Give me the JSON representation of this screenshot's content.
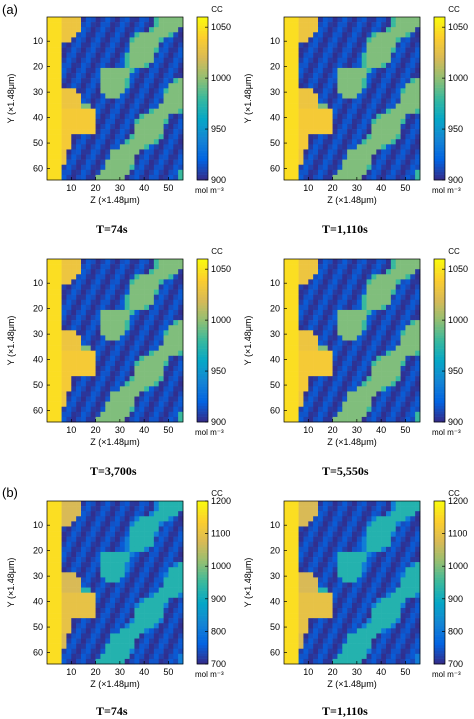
{
  "panel_labels": [
    "(a)",
    "(b)"
  ],
  "chart_data": [
    {
      "type": "heatmap",
      "group": "(a)",
      "title": "T=74s",
      "xlabel": "Z (×1.48μm)",
      "ylabel": "Y (×1.48μm)",
      "xticks": [
        "10",
        "20",
        "30",
        "40",
        "50"
      ],
      "yticks": [
        "10",
        "20",
        "30",
        "40",
        "50",
        "60"
      ],
      "xlim": [
        0,
        56
      ],
      "ylim": [
        64,
        1
      ],
      "colorbar": {
        "title": "CC",
        "unit": "mol m⁻³",
        "range": [
          900,
          1060
        ],
        "ticks": [
          "900",
          "950",
          "1000",
          "1050"
        ],
        "colormap": "parula"
      }
    },
    {
      "type": "heatmap",
      "group": "(a)",
      "title": "T=1,110s",
      "xlabel": "Z (×1.48μm)",
      "ylabel": "Y (×1.48μm)",
      "xticks": [
        "10",
        "20",
        "30",
        "40",
        "50"
      ],
      "yticks": [
        "10",
        "20",
        "30",
        "40",
        "50",
        "60"
      ],
      "xlim": [
        0,
        56
      ],
      "ylim": [
        64,
        1
      ],
      "colorbar": {
        "title": "CC",
        "unit": "mol m⁻³",
        "range": [
          900,
          1060
        ],
        "ticks": [
          "900",
          "950",
          "1000",
          "1050"
        ],
        "colormap": "parula"
      }
    },
    {
      "type": "heatmap",
      "group": "(a)",
      "title": "T=3,700s",
      "xlabel": "Z (×1.48μm)",
      "ylabel": "Y (×1.48μm)",
      "xticks": [
        "10",
        "20",
        "30",
        "40",
        "50"
      ],
      "yticks": [
        "10",
        "20",
        "30",
        "40",
        "50",
        "60"
      ],
      "xlim": [
        0,
        56
      ],
      "ylim": [
        64,
        1
      ],
      "colorbar": {
        "title": "CC",
        "unit": "mol m⁻³",
        "range": [
          900,
          1060
        ],
        "ticks": [
          "900",
          "950",
          "1000",
          "1050"
        ],
        "colormap": "parula"
      }
    },
    {
      "type": "heatmap",
      "group": "(a)",
      "title": "T=5,550s",
      "xlabel": "Z (×1.48μm)",
      "ylabel": "Y (×1.48μm)",
      "xticks": [
        "10",
        "20",
        "30",
        "40",
        "50"
      ],
      "yticks": [
        "10",
        "20",
        "30",
        "40",
        "50",
        "60"
      ],
      "xlim": [
        0,
        56
      ],
      "ylim": [
        64,
        1
      ],
      "colorbar": {
        "title": "CC",
        "unit": "mol m⁻³",
        "range": [
          900,
          1060
        ],
        "ticks": [
          "900",
          "950",
          "1000",
          "1050"
        ],
        "colormap": "parula"
      }
    },
    {
      "type": "heatmap",
      "group": "(b)",
      "title": "T=74s",
      "xlabel": "Z (×1.48μm)",
      "ylabel": "Y (×1.48μm)",
      "xticks": [
        "10",
        "20",
        "30",
        "40",
        "50"
      ],
      "yticks": [
        "10",
        "20",
        "30",
        "40",
        "50",
        "60"
      ],
      "xlim": [
        0,
        56
      ],
      "ylim": [
        64,
        1
      ],
      "colorbar": {
        "title": "CC",
        "unit": "mol m⁻³",
        "range": [
          700,
          1200
        ],
        "ticks": [
          "700",
          "800",
          "900",
          "1000",
          "1100",
          "1200"
        ],
        "colormap": "parula"
      }
    },
    {
      "type": "heatmap",
      "group": "(b)",
      "title": "T=1,110s",
      "xlabel": "Z (×1.48μm)",
      "ylabel": "Y (×1.48μm)",
      "xticks": [
        "10",
        "20",
        "30",
        "40",
        "50"
      ],
      "yticks": [
        "10",
        "20",
        "30",
        "40",
        "50",
        "60"
      ],
      "xlim": [
        0,
        56
      ],
      "ylim": [
        64,
        1
      ],
      "colorbar": {
        "title": "CC",
        "unit": "mol m⁻³",
        "range": [
          700,
          1200
        ],
        "ticks": [
          "700",
          "800",
          "900",
          "1000",
          "1100",
          "1200"
        ],
        "colormap": "parula"
      }
    }
  ]
}
